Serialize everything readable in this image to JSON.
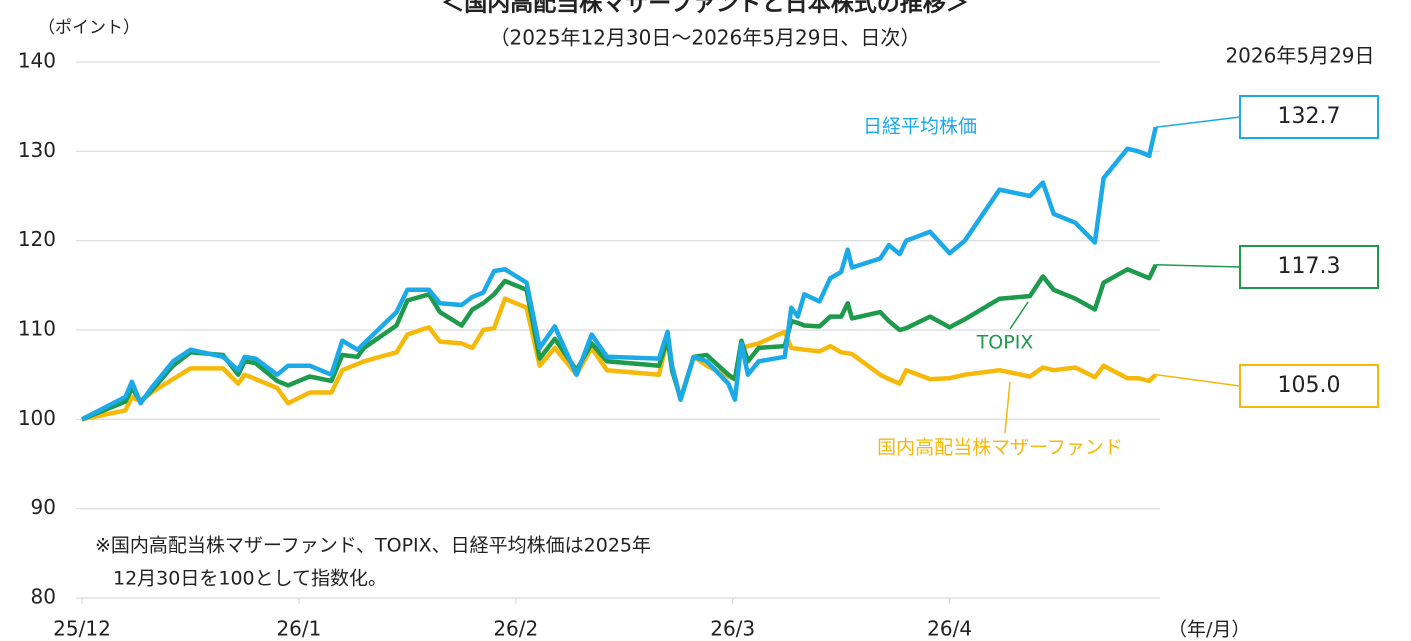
{
  "chart_data": {
    "type": "line",
    "title": "＜国内高配当株マザーファンドと日本株式の推移＞",
    "subtitle": "（2025年12月30日～2026年5月29日、日次）",
    "y_label": "（ポイント）",
    "x_label": "（年/月）",
    "date_label": "2026年5月29日",
    "note": [
      "※国内高配当株マザーファンド、TOPIX、日経平均株価は2025年",
      "12月30日を100として指数化。"
    ],
    "xlim": [
      0,
      4.97
    ],
    "xticks": [
      {
        "value": 0,
        "label": "25/12"
      },
      {
        "value": 1,
        "label": "26/1"
      },
      {
        "value": 2,
        "label": "26/2"
      },
      {
        "value": 3,
        "label": "26/3"
      },
      {
        "value": 4,
        "label": "26/4"
      }
    ],
    "ylim": [
      80,
      140
    ],
    "yticks": [
      80,
      90,
      100,
      110,
      120,
      130,
      140
    ],
    "grid": true,
    "x": [
      0,
      0.2,
      0.23,
      0.27,
      0.32,
      0.42,
      0.5,
      0.65,
      0.72,
      0.75,
      0.8,
      0.9,
      0.95,
      1.05,
      1.15,
      1.2,
      1.27,
      1.3,
      1.45,
      1.5,
      1.6,
      1.65,
      1.75,
      1.8,
      1.85,
      1.9,
      1.95,
      2.05,
      2.11,
      2.18,
      2.28,
      2.35,
      2.42,
      2.66,
      2.7,
      2.72,
      2.76,
      2.82,
      2.88,
      2.98,
      3.01,
      3.04,
      3.07,
      3.12,
      3.24,
      3.27,
      3.3,
      3.33,
      3.4,
      3.45,
      3.5,
      3.53,
      3.55,
      3.68,
      3.72,
      3.77,
      3.8,
      3.91,
      4.0,
      4.07,
      4.23,
      4.37,
      4.43,
      4.48,
      4.58,
      4.67,
      4.71,
      4.82,
      4.87,
      4.92,
      4.95
    ],
    "series": [
      {
        "name": "日経平均株価",
        "color": "#1ba9e8",
        "values": [
          100,
          102.5,
          104.2,
          101.8,
          103.5,
          106.5,
          107.8,
          107,
          105.5,
          107,
          106.8,
          105,
          106,
          106,
          105,
          108.8,
          107.8,
          108.5,
          112,
          114.5,
          114.5,
          113,
          112.8,
          113.7,
          114.2,
          116.6,
          116.8,
          115.3,
          108,
          110.4,
          105,
          109.5,
          107,
          106.8,
          109.8,
          106,
          102.2,
          107,
          106.5,
          104,
          102.2,
          108.5,
          105,
          106.5,
          107,
          112.5,
          111.5,
          114,
          113.2,
          115.8,
          116.5,
          119,
          117,
          118,
          119.5,
          118.5,
          120,
          121,
          118.6,
          120,
          125.7,
          125,
          126.5,
          123,
          122,
          119.8,
          127,
          130.3,
          130,
          129.5,
          132.7
        ],
        "value_labels": [
          null,
          null,
          null,
          null,
          null,
          null,
          null,
          null,
          null,
          null,
          null,
          null,
          null,
          null,
          null,
          null,
          null,
          null,
          null,
          null,
          null,
          null,
          null,
          null,
          null,
          null,
          null,
          null,
          null,
          null,
          null,
          null,
          null,
          null,
          null,
          null,
          null,
          null,
          null,
          null,
          null,
          null,
          null,
          null,
          null,
          null,
          null,
          null,
          null,
          null,
          null,
          null,
          null,
          null,
          null,
          null,
          null,
          null,
          null,
          null,
          null,
          null,
          null,
          null,
          null,
          null,
          null,
          null,
          null,
          null,
          "132.7"
        ]
      },
      {
        "name": "TOPIX",
        "color": "#1d9a4b",
        "values": [
          100,
          102,
          103.5,
          102,
          103.2,
          106,
          107.5,
          107.2,
          105,
          106.5,
          106.3,
          104.3,
          103.8,
          104.8,
          104.3,
          107.2,
          107,
          108,
          110.5,
          113.3,
          114,
          112,
          110.5,
          112.3,
          113,
          114,
          115.5,
          114.5,
          106.8,
          109,
          105.5,
          108.5,
          106.5,
          106,
          109,
          105.5,
          102.3,
          107,
          107.2,
          105,
          104.5,
          108.8,
          106.5,
          108,
          108.2,
          111,
          110.8,
          110.5,
          110.4,
          111.5,
          111.5,
          113,
          111.3,
          112,
          111,
          110,
          110.2,
          111.5,
          110.3,
          111.2,
          113.5,
          113.8,
          116,
          114.5,
          113.5,
          112.3,
          115.3,
          116.8,
          116.3,
          115.8,
          117.3
        ],
        "value_labels": [
          null,
          null,
          null,
          null,
          null,
          null,
          null,
          null,
          null,
          null,
          null,
          null,
          null,
          null,
          null,
          null,
          null,
          null,
          null,
          null,
          null,
          null,
          null,
          null,
          null,
          null,
          null,
          null,
          null,
          null,
          null,
          null,
          null,
          null,
          null,
          null,
          null,
          null,
          null,
          null,
          null,
          null,
          null,
          null,
          null,
          null,
          null,
          null,
          null,
          null,
          null,
          null,
          null,
          null,
          null,
          null,
          null,
          null,
          null,
          null,
          null,
          null,
          null,
          null,
          null,
          null,
          null,
          null,
          null,
          null,
          "117.3"
        ]
      },
      {
        "name": "国内高配当株マザーファンド",
        "color": "#f6b90a",
        "values": [
          100,
          101,
          102.5,
          102,
          103,
          104.5,
          105.7,
          105.7,
          104,
          105,
          104.5,
          103.5,
          101.8,
          103,
          103,
          105.5,
          106.2,
          106.5,
          107.5,
          109.5,
          110.3,
          108.7,
          108.5,
          108,
          110,
          110.2,
          113.5,
          112.5,
          106,
          108,
          105,
          108,
          105.5,
          105,
          109,
          106,
          102.2,
          107,
          106,
          104.8,
          104.5,
          108,
          108.2,
          108.5,
          109.8,
          108,
          107.9,
          107.8,
          107.6,
          108.2,
          107.5,
          107.4,
          107.3,
          105,
          104.5,
          104,
          105.5,
          104.5,
          104.6,
          105,
          105.5,
          104.8,
          105.8,
          105.5,
          105.8,
          104.7,
          106,
          104.6,
          104.6,
          104.3,
          105
        ],
        "value_labels": [
          null,
          null,
          null,
          null,
          null,
          null,
          null,
          null,
          null,
          null,
          null,
          null,
          null,
          null,
          null,
          null,
          null,
          null,
          null,
          null,
          null,
          null,
          null,
          null,
          null,
          null,
          null,
          null,
          null,
          null,
          null,
          null,
          null,
          null,
          null,
          null,
          null,
          null,
          null,
          null,
          null,
          null,
          null,
          null,
          null,
          null,
          null,
          null,
          null,
          null,
          null,
          null,
          null,
          null,
          null,
          null,
          null,
          null,
          null,
          null,
          null,
          null,
          null,
          null,
          null,
          null,
          null,
          null,
          null,
          null,
          "105.0"
        ]
      }
    ]
  }
}
